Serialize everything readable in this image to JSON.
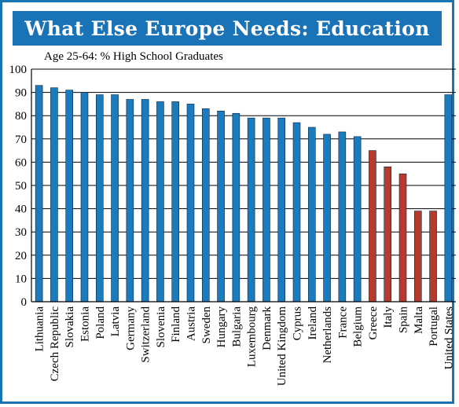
{
  "title": "What Else Europe Needs: Education",
  "colors": {
    "frame": "#1874b3",
    "title_bg": "#1a73b6",
    "title_text": "#ffffff",
    "bar_blue": "#1b7bbd",
    "bar_red": "#b83a2c"
  },
  "chart_data": {
    "type": "bar",
    "title": "What Else Europe Needs: Education",
    "subtitle": "Age 25-64: % High School Graduates",
    "xlabel": "",
    "ylabel": "",
    "ylim": [
      0,
      100
    ],
    "yticks": [
      0,
      10,
      20,
      30,
      40,
      50,
      60,
      70,
      80,
      90,
      100
    ],
    "grid": true,
    "categories": [
      "Lithuania",
      "Czech Republic",
      "Slovakia",
      "Estonia",
      "Poland",
      "Latvia",
      "Germany",
      "Switzerland",
      "Slovenia",
      "Finland",
      "Austria",
      "Sweden",
      "Hungary",
      "Bulgaria",
      "Luxembourg",
      "Denmark",
      "United Kingdom",
      "Cyprus",
      "Ireland",
      "Netherlands",
      "France",
      "Belgium",
      "Greece",
      "Italy",
      "Spain",
      "Malta",
      "Portugal",
      "United States"
    ],
    "values": [
      93,
      92,
      91,
      90,
      89,
      89,
      87,
      87,
      86,
      86,
      85,
      83,
      82,
      81,
      79,
      79,
      79,
      77,
      75,
      72,
      73,
      71,
      65,
      58,
      55,
      39,
      39,
      89
    ],
    "highlight": [
      "Greece",
      "Italy",
      "Spain",
      "Malta",
      "Portugal"
    ]
  }
}
